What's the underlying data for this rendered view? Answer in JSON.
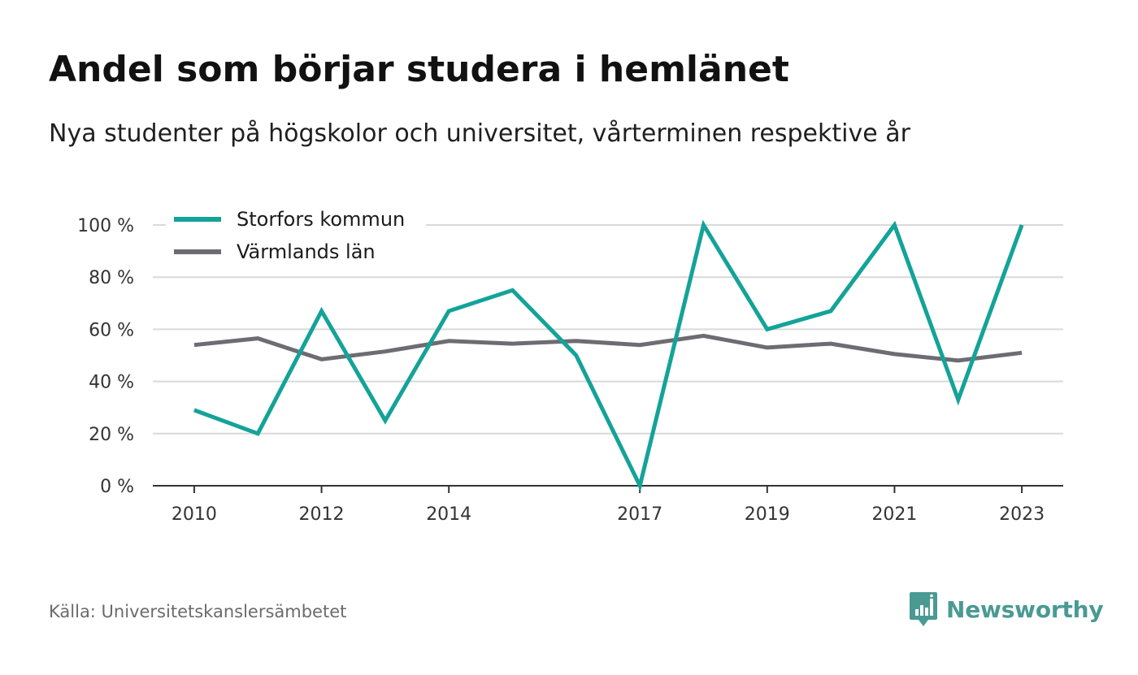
{
  "header": {
    "title": "Andel som börjar studera i hemlänet",
    "subtitle": "Nya studenter på högskolor och universitet, vårterminen respektive år"
  },
  "footer": {
    "source": "Källa: Universitetskanslersämbetet",
    "brand_name": "Newsworthy",
    "brand_icon": "bar-chart-speech-bubble-icon",
    "brand_color": "#4a9a93"
  },
  "chart_data": {
    "type": "line",
    "title": "Andel som börjar studera i hemlänet",
    "subtitle": "Nya studenter på högskolor och universitet, vårterminen respektive år",
    "x": [
      2010,
      2011,
      2012,
      2013,
      2014,
      2015,
      2016,
      2017,
      2018,
      2019,
      2020,
      2021,
      2022,
      2023
    ],
    "x_tick_labels": [
      "2010",
      "2012",
      "2014",
      "2017",
      "2019",
      "2021",
      "2023"
    ],
    "x_tick_values": [
      2010,
      2012,
      2014,
      2017,
      2019,
      2021,
      2023
    ],
    "y_tick_labels": [
      "0 %",
      "20 %",
      "40 %",
      "60 %",
      "80 %",
      "100 %"
    ],
    "y_tick_values": [
      0,
      20,
      40,
      60,
      80,
      100
    ],
    "ylim": [
      0,
      100
    ],
    "xlim": [
      2009.35,
      2023.65
    ],
    "grid": true,
    "legend_position": "top-left",
    "series": [
      {
        "name": "Storfors kommun",
        "color": "#14a398",
        "values": [
          29,
          20,
          67,
          25,
          67,
          75,
          50,
          0,
          100,
          60,
          67,
          100,
          33,
          100
        ]
      },
      {
        "name": "Värmlands län",
        "color": "#6e6c73",
        "values": [
          54,
          56.5,
          48.5,
          51.5,
          55.5,
          54.5,
          55.5,
          54,
          57.5,
          53,
          54.5,
          50.5,
          48,
          51
        ]
      }
    ],
    "colors": {
      "grid": "#d9d9d9",
      "axis": "#333333",
      "tick_label": "#333333",
      "legend_text": "#1a1a1a"
    }
  }
}
